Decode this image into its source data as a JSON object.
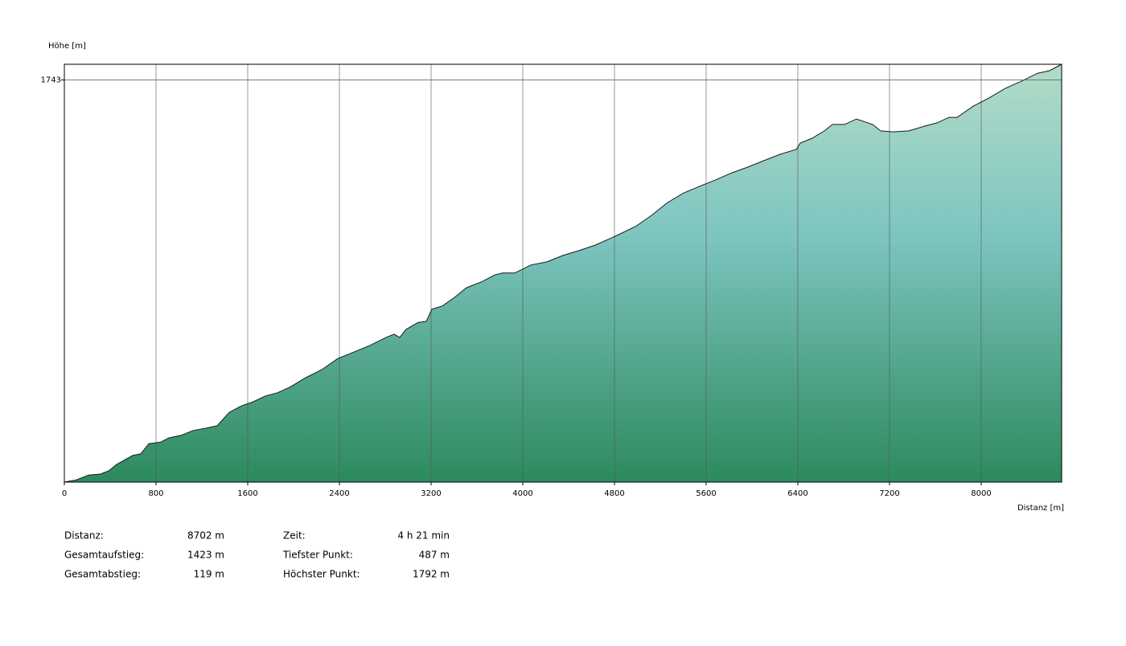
{
  "chart_data": {
    "type": "area",
    "y_label": "Höhe [m]",
    "x_label": "Distanz [m]",
    "x": [
      0,
      105,
      211,
      316,
      386,
      456,
      596,
      667,
      737,
      842,
      912,
      1018,
      1123,
      1228,
      1333,
      1439,
      1544,
      1649,
      1754,
      1860,
      1965,
      2105,
      2246,
      2386,
      2526,
      2667,
      2807,
      2877,
      2926,
      2982,
      3088,
      3158,
      3207,
      3298,
      3404,
      3509,
      3649,
      3754,
      3825,
      3930,
      4070,
      4211,
      4351,
      4491,
      4632,
      4807,
      4982,
      5123,
      5263,
      5404,
      5544,
      5684,
      5825,
      5965,
      6105,
      6246,
      6386,
      6421,
      6526,
      6632,
      6702,
      6807,
      6912,
      7053,
      7123,
      7228,
      7368,
      7509,
      7614,
      7719,
      7789,
      7930,
      8070,
      8211,
      8351,
      8491,
      8596,
      8702
    ],
    "values": [
      487,
      494,
      509,
      512,
      522,
      542,
      570,
      575,
      607,
      612,
      625,
      633,
      648,
      655,
      663,
      705,
      725,
      738,
      756,
      766,
      783,
      813,
      838,
      873,
      893,
      914,
      939,
      949,
      939,
      964,
      986,
      989,
      1027,
      1037,
      1064,
      1094,
      1114,
      1134,
      1140,
      1140,
      1165,
      1175,
      1195,
      1210,
      1227,
      1255,
      1285,
      1320,
      1360,
      1390,
      1411,
      1431,
      1453,
      1471,
      1491,
      1511,
      1526,
      1546,
      1561,
      1584,
      1604,
      1604,
      1621,
      1604,
      1584,
      1581,
      1584,
      1599,
      1609,
      1626,
      1626,
      1661,
      1687,
      1717,
      1739,
      1764,
      1772,
      1792
    ],
    "xlim": [
      0,
      8702
    ],
    "ylim": [
      487,
      1792
    ],
    "xticks": [
      0,
      800,
      1600,
      2400,
      3200,
      4000,
      4800,
      5600,
      6400,
      7200,
      8000
    ],
    "yticks": [
      1743
    ],
    "grid": true,
    "colors": {
      "top": "#b2dcc8",
      "middle": "#7cc4c0",
      "bottom": "#2c8a5c",
      "line": "#1a1a1a"
    }
  },
  "stats": [
    {
      "label": "Distanz:",
      "value": "8702 m"
    },
    {
      "label": "Gesamtaufstieg:",
      "value": "1423 m"
    },
    {
      "label": "Gesamtabstieg:",
      "value": "119 m"
    },
    {
      "label": "Zeit:",
      "value": "4 h 21 min"
    },
    {
      "label": "Tiefster Punkt:",
      "value": "487 m"
    },
    {
      "label": "Höchster Punkt:",
      "value": "1792 m"
    }
  ]
}
